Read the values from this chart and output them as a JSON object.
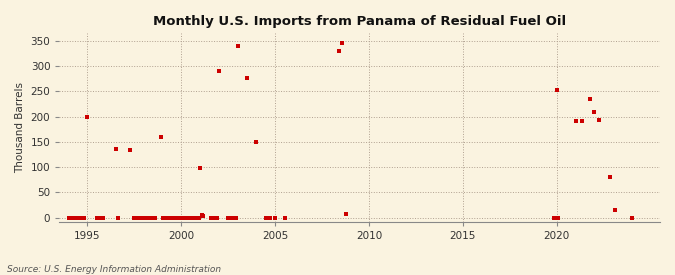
{
  "title": "Monthly U.S. Imports from Panama of Residual Fuel Oil",
  "ylabel": "Thousand Barrels",
  "source": "Source: U.S. Energy Information Administration",
  "bg_color": "#faf3e0",
  "marker_color": "#cc0000",
  "xlim": [
    1993.5,
    2025.5
  ],
  "ylim": [
    -8,
    365
  ],
  "yticks": [
    0,
    50,
    100,
    150,
    200,
    250,
    300,
    350
  ],
  "xticks": [
    1995,
    2000,
    2005,
    2010,
    2015,
    2020
  ],
  "data_points": [
    [
      1994.0,
      0
    ],
    [
      1994.1,
      0
    ],
    [
      1994.2,
      0
    ],
    [
      1994.3,
      0
    ],
    [
      1994.5,
      0
    ],
    [
      1994.6,
      0
    ],
    [
      1994.7,
      0
    ],
    [
      1994.8,
      0
    ],
    [
      1995.0,
      200
    ],
    [
      1995.5,
      0
    ],
    [
      1995.6,
      0
    ],
    [
      1995.7,
      0
    ],
    [
      1995.8,
      0
    ],
    [
      1996.5,
      136
    ],
    [
      1996.6,
      0
    ],
    [
      1997.25,
      134
    ],
    [
      1997.5,
      0
    ],
    [
      1997.6,
      0
    ],
    [
      1997.7,
      0
    ],
    [
      1997.8,
      0
    ],
    [
      1997.9,
      0
    ],
    [
      1998.0,
      0
    ],
    [
      1998.08,
      0
    ],
    [
      1998.17,
      0
    ],
    [
      1998.25,
      0
    ],
    [
      1998.33,
      0
    ],
    [
      1998.42,
      0
    ],
    [
      1998.5,
      0
    ],
    [
      1998.58,
      0
    ],
    [
      1998.9,
      160
    ],
    [
      1999.0,
      0
    ],
    [
      1999.08,
      0
    ],
    [
      1999.17,
      0
    ],
    [
      1999.25,
      0
    ],
    [
      1999.33,
      0
    ],
    [
      1999.42,
      0
    ],
    [
      1999.5,
      0
    ],
    [
      1999.58,
      0
    ],
    [
      1999.67,
      0
    ],
    [
      1999.75,
      0
    ],
    [
      1999.83,
      0
    ],
    [
      1999.92,
      0
    ],
    [
      2000.0,
      0
    ],
    [
      2000.08,
      0
    ],
    [
      2000.17,
      0
    ],
    [
      2000.25,
      0
    ],
    [
      2000.33,
      0
    ],
    [
      2000.42,
      0
    ],
    [
      2000.5,
      0
    ],
    [
      2000.58,
      0
    ],
    [
      2000.67,
      0
    ],
    [
      2000.75,
      0
    ],
    [
      2000.83,
      0
    ],
    [
      2000.92,
      0
    ],
    [
      2001.0,
      99
    ],
    [
      2001.08,
      5
    ],
    [
      2001.17,
      4
    ],
    [
      2001.58,
      0
    ],
    [
      2001.67,
      0
    ],
    [
      2001.75,
      0
    ],
    [
      2001.83,
      0
    ],
    [
      2001.92,
      0
    ],
    [
      2002.0,
      290
    ],
    [
      2002.5,
      0
    ],
    [
      2002.6,
      0
    ],
    [
      2002.7,
      0
    ],
    [
      2002.8,
      0
    ],
    [
      2002.9,
      0
    ],
    [
      2003.0,
      340
    ],
    [
      2003.5,
      277
    ],
    [
      2004.0,
      150
    ],
    [
      2004.5,
      0
    ],
    [
      2004.6,
      0
    ],
    [
      2004.7,
      0
    ],
    [
      2005.0,
      0
    ],
    [
      2005.5,
      0
    ],
    [
      2008.42,
      330
    ],
    [
      2008.58,
      345
    ],
    [
      2008.75,
      8
    ],
    [
      2019.83,
      0
    ],
    [
      2020.0,
      253
    ],
    [
      2020.08,
      0
    ],
    [
      2021.0,
      192
    ],
    [
      2021.33,
      192
    ],
    [
      2021.75,
      235
    ],
    [
      2022.0,
      210
    ],
    [
      2022.25,
      193
    ],
    [
      2022.83,
      80
    ],
    [
      2023.08,
      15
    ],
    [
      2024.0,
      0
    ]
  ]
}
